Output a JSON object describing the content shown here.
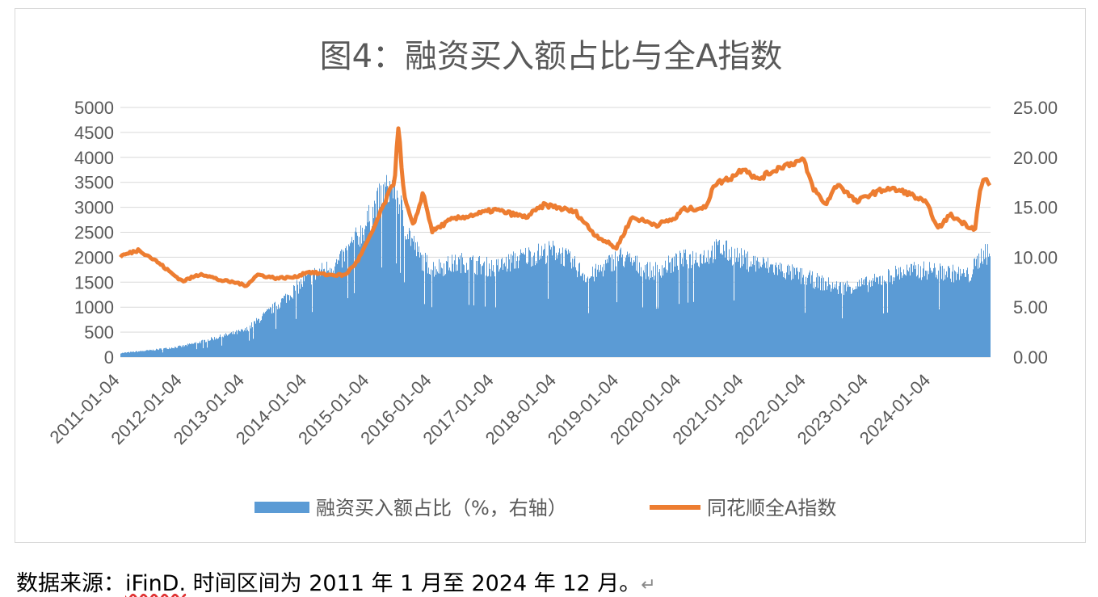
{
  "chart_data": {
    "type": "bar+line",
    "title": "图4：融资买入额占比与全A指数",
    "x_tick_labels": [
      "2011-01-04",
      "2012-01-04",
      "2013-01-04",
      "2014-01-04",
      "2015-01-04",
      "2016-01-04",
      "2017-01-04",
      "2018-01-04",
      "2019-01-04",
      "2020-01-04",
      "2021-01-04",
      "2022-01-04",
      "2023-01-04",
      "2024-01-04"
    ],
    "left_axis": {
      "ticks": [
        "5000",
        "4500",
        "4000",
        "3500",
        "3000",
        "2500",
        "2000",
        "1500",
        "1000",
        "500",
        "0"
      ],
      "range": [
        0,
        5000
      ]
    },
    "right_axis": {
      "ticks": [
        "25.00",
        "20.00",
        "15.00",
        "10.00",
        "5.00",
        "0.00"
      ],
      "range": [
        0,
        25
      ]
    },
    "x_range": [
      2011.0,
      2024.95
    ],
    "series": [
      {
        "name": "融资买入额占比（%，右轴）",
        "kind": "bar",
        "color": "#5b9bd5",
        "approx_values_right_axis": [
          [
            2011.0,
            0.4
          ],
          [
            2011.5,
            0.7
          ],
          [
            2012.0,
            1.1
          ],
          [
            2012.5,
            1.9
          ],
          [
            2013.0,
            2.7
          ],
          [
            2013.5,
            5.2
          ],
          [
            2014.0,
            8.0
          ],
          [
            2014.5,
            9.5
          ],
          [
            2014.9,
            13.0
          ],
          [
            2015.2,
            16.5
          ],
          [
            2015.4,
            17.5
          ],
          [
            2015.55,
            13.5
          ],
          [
            2015.8,
            10.0
          ],
          [
            2016.0,
            9.0
          ],
          [
            2016.5,
            9.6
          ],
          [
            2017.0,
            9.0
          ],
          [
            2017.5,
            10.2
          ],
          [
            2018.0,
            10.8
          ],
          [
            2018.5,
            8.0
          ],
          [
            2019.0,
            10.2
          ],
          [
            2019.5,
            8.6
          ],
          [
            2020.0,
            9.8
          ],
          [
            2020.4,
            10.3
          ],
          [
            2020.6,
            11.0
          ],
          [
            2021.0,
            9.8
          ],
          [
            2021.5,
            9.0
          ],
          [
            2022.0,
            8.0
          ],
          [
            2022.5,
            7.0
          ],
          [
            2023.0,
            7.4
          ],
          [
            2023.5,
            8.6
          ],
          [
            2024.0,
            8.8
          ],
          [
            2024.6,
            8.2
          ],
          [
            2024.85,
            10.8
          ],
          [
            2024.95,
            9.8
          ]
        ]
      },
      {
        "name": "同花顺全A指数",
        "kind": "line",
        "color": "#ed7d31",
        "approx_values_left_axis": [
          [
            2011.0,
            2020
          ],
          [
            2011.3,
            2150
          ],
          [
            2011.6,
            1900
          ],
          [
            2011.85,
            1650
          ],
          [
            2012.0,
            1520
          ],
          [
            2012.3,
            1670
          ],
          [
            2012.6,
            1540
          ],
          [
            2012.9,
            1480
          ],
          [
            2013.0,
            1420
          ],
          [
            2013.2,
            1650
          ],
          [
            2013.5,
            1580
          ],
          [
            2013.8,
            1600
          ],
          [
            2014.0,
            1710
          ],
          [
            2014.3,
            1650
          ],
          [
            2014.6,
            1640
          ],
          [
            2014.8,
            1920
          ],
          [
            2015.0,
            2400
          ],
          [
            2015.2,
            2980
          ],
          [
            2015.4,
            3550
          ],
          [
            2015.45,
            4720
          ],
          [
            2015.55,
            3200
          ],
          [
            2015.7,
            2600
          ],
          [
            2015.85,
            3300
          ],
          [
            2016.0,
            2520
          ],
          [
            2016.3,
            2750
          ],
          [
            2016.7,
            2860
          ],
          [
            2017.0,
            2950
          ],
          [
            2017.5,
            2800
          ],
          [
            2017.8,
            3050
          ],
          [
            2018.0,
            3000
          ],
          [
            2018.3,
            2900
          ],
          [
            2018.6,
            2460
          ],
          [
            2018.95,
            2180
          ],
          [
            2019.2,
            2800
          ],
          [
            2019.6,
            2650
          ],
          [
            2019.9,
            2780
          ],
          [
            2020.0,
            2950
          ],
          [
            2020.4,
            3000
          ],
          [
            2020.5,
            3450
          ],
          [
            2020.8,
            3600
          ],
          [
            2021.0,
            3800
          ],
          [
            2021.2,
            3550
          ],
          [
            2021.6,
            3820
          ],
          [
            2021.95,
            3950
          ],
          [
            2022.1,
            3400
          ],
          [
            2022.3,
            3050
          ],
          [
            2022.5,
            3480
          ],
          [
            2022.8,
            3100
          ],
          [
            2023.0,
            3250
          ],
          [
            2023.3,
            3380
          ],
          [
            2023.6,
            3300
          ],
          [
            2023.9,
            3100
          ],
          [
            2024.0,
            2900
          ],
          [
            2024.1,
            2560
          ],
          [
            2024.3,
            2850
          ],
          [
            2024.6,
            2620
          ],
          [
            2024.7,
            2570
          ],
          [
            2024.77,
            3250
          ],
          [
            2024.85,
            3600
          ],
          [
            2024.95,
            3400
          ]
        ]
      }
    ],
    "legend": {
      "placement": "bottom"
    },
    "grid": "horizontal"
  },
  "footnote": {
    "prefix": "数据来源：",
    "source": "iFinD.",
    "suffix": " 时间区间为 2011 年 1 月至 2024 年 12 月。",
    "return_mark": "↵"
  }
}
